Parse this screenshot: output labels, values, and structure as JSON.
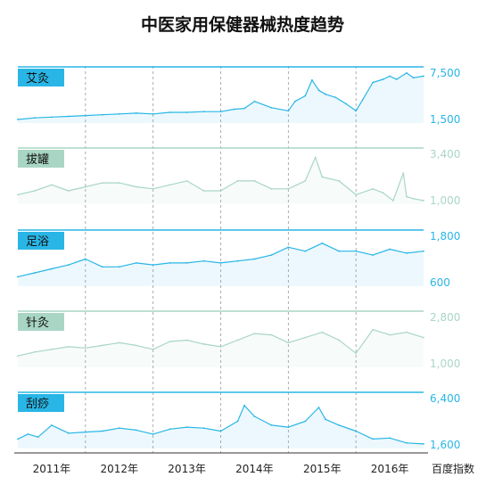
{
  "title": "中医家用保健器械热度趋势",
  "source_label": "百度指数",
  "x_axis": {
    "range": [
      2011.0,
      2017.0
    ],
    "tick_labels": [
      "2011年",
      "2012年",
      "2013年",
      "2014年",
      "2015年",
      "2016年"
    ],
    "tick_years": [
      2011,
      2012,
      2013,
      2014,
      2015,
      2016
    ]
  },
  "colors": {
    "blue": "#29b6e6",
    "green": "#a9d6c4",
    "grid": "#999999",
    "title": "#111111"
  },
  "chart_data": {
    "type": "area",
    "grid": true,
    "legend_position": "top-left",
    "series": [
      {
        "name": "艾灸",
        "color": "#29b6e6",
        "label_bg": "#29b6e6",
        "y_labels": [
          "7,500",
          "1,500"
        ],
        "ylim": [
          1500,
          7500
        ],
        "x": [
          2011.0,
          2011.25,
          2011.5,
          2011.75,
          2012.0,
          2012.25,
          2012.5,
          2012.75,
          2013.0,
          2013.25,
          2013.5,
          2013.75,
          2014.0,
          2014.2,
          2014.35,
          2014.5,
          2014.75,
          2015.0,
          2015.1,
          2015.25,
          2015.35,
          2015.45,
          2015.55,
          2015.7,
          2015.85,
          2016.0,
          2016.1,
          2016.25,
          2016.4,
          2016.5,
          2016.6,
          2016.75,
          2016.85,
          2017.0
        ],
        "values": [
          1500,
          1700,
          1800,
          1900,
          2000,
          2100,
          2200,
          2300,
          2200,
          2400,
          2400,
          2500,
          2500,
          2800,
          2900,
          3800,
          3000,
          2600,
          3800,
          4500,
          6500,
          5200,
          4700,
          4300,
          3500,
          2600,
          4000,
          6200,
          6600,
          7000,
          6600,
          7400,
          6800,
          7000
        ]
      },
      {
        "name": "拔罐",
        "color": "#a9d6c4",
        "label_bg": "#a9d6c4",
        "y_labels": [
          "3,400",
          "1,000"
        ],
        "ylim": [
          1000,
          3400
        ],
        "x": [
          2011.0,
          2011.25,
          2011.5,
          2011.75,
          2012.0,
          2012.25,
          2012.5,
          2012.75,
          2013.0,
          2013.25,
          2013.5,
          2013.75,
          2014.0,
          2014.25,
          2014.5,
          2014.75,
          2015.0,
          2015.25,
          2015.4,
          2015.5,
          2015.75,
          2016.0,
          2016.25,
          2016.4,
          2016.55,
          2016.7,
          2016.75,
          2016.85,
          2017.0
        ],
        "values": [
          1300,
          1500,
          1800,
          1500,
          1700,
          1900,
          1900,
          1700,
          1600,
          1800,
          2000,
          1500,
          1500,
          2000,
          2000,
          1600,
          1600,
          2000,
          3200,
          2200,
          2000,
          1300,
          1600,
          1400,
          1000,
          2400,
          1200,
          1100,
          1000
        ]
      },
      {
        "name": "足浴",
        "color": "#29b6e6",
        "label_bg": "#29b6e6",
        "y_labels": [
          "1,800",
          "600"
        ],
        "ylim": [
          600,
          1800
        ],
        "x": [
          2011.0,
          2011.25,
          2011.5,
          2011.75,
          2012.0,
          2012.25,
          2012.5,
          2012.75,
          2013.0,
          2013.25,
          2013.5,
          2013.75,
          2014.0,
          2014.25,
          2014.5,
          2014.75,
          2015.0,
          2015.25,
          2015.5,
          2015.75,
          2016.0,
          2016.25,
          2016.5,
          2016.75,
          2017.0
        ],
        "values": [
          750,
          850,
          950,
          1050,
          1200,
          1000,
          1000,
          1100,
          1050,
          1100,
          1100,
          1150,
          1100,
          1150,
          1200,
          1300,
          1500,
          1400,
          1600,
          1400,
          1400,
          1300,
          1450,
          1350,
          1400
        ]
      },
      {
        "name": "针灸",
        "color": "#a9d6c4",
        "label_bg": "#a9d6c4",
        "y_labels": [
          "2,800",
          "1,000"
        ],
        "ylim": [
          1000,
          2800
        ],
        "x": [
          2011.0,
          2011.25,
          2011.5,
          2011.75,
          2012.0,
          2012.25,
          2012.5,
          2012.75,
          2013.0,
          2013.25,
          2013.5,
          2013.75,
          2014.0,
          2014.25,
          2014.5,
          2014.75,
          2015.0,
          2015.25,
          2015.5,
          2015.75,
          2016.0,
          2016.25,
          2016.5,
          2016.75,
          2017.0
        ],
        "values": [
          1300,
          1450,
          1550,
          1650,
          1600,
          1700,
          1800,
          1700,
          1550,
          1850,
          1900,
          1750,
          1650,
          1900,
          2150,
          2100,
          1800,
          2000,
          2200,
          1900,
          1400,
          2300,
          2100,
          2200,
          2000
        ]
      },
      {
        "name": "刮痧",
        "color": "#29b6e6",
        "label_bg": "#29b6e6",
        "y_labels": [
          "6,400",
          "1,600"
        ],
        "ylim": [
          1600,
          6400
        ],
        "x": [
          2011.0,
          2011.15,
          2011.3,
          2011.5,
          2011.75,
          2012.0,
          2012.25,
          2012.5,
          2012.75,
          2013.0,
          2013.25,
          2013.5,
          2013.75,
          2014.0,
          2014.25,
          2014.35,
          2014.5,
          2014.75,
          2015.0,
          2015.25,
          2015.45,
          2015.55,
          2015.75,
          2016.0,
          2016.25,
          2016.5,
          2016.75,
          2017.0
        ],
        "values": [
          2200,
          2700,
          2400,
          3600,
          2800,
          2900,
          3000,
          3300,
          3100,
          2700,
          3200,
          3400,
          3300,
          3000,
          4000,
          5600,
          4500,
          3600,
          3400,
          4000,
          5400,
          4200,
          3600,
          3000,
          2200,
          2300,
          1800,
          1700
        ]
      }
    ]
  }
}
